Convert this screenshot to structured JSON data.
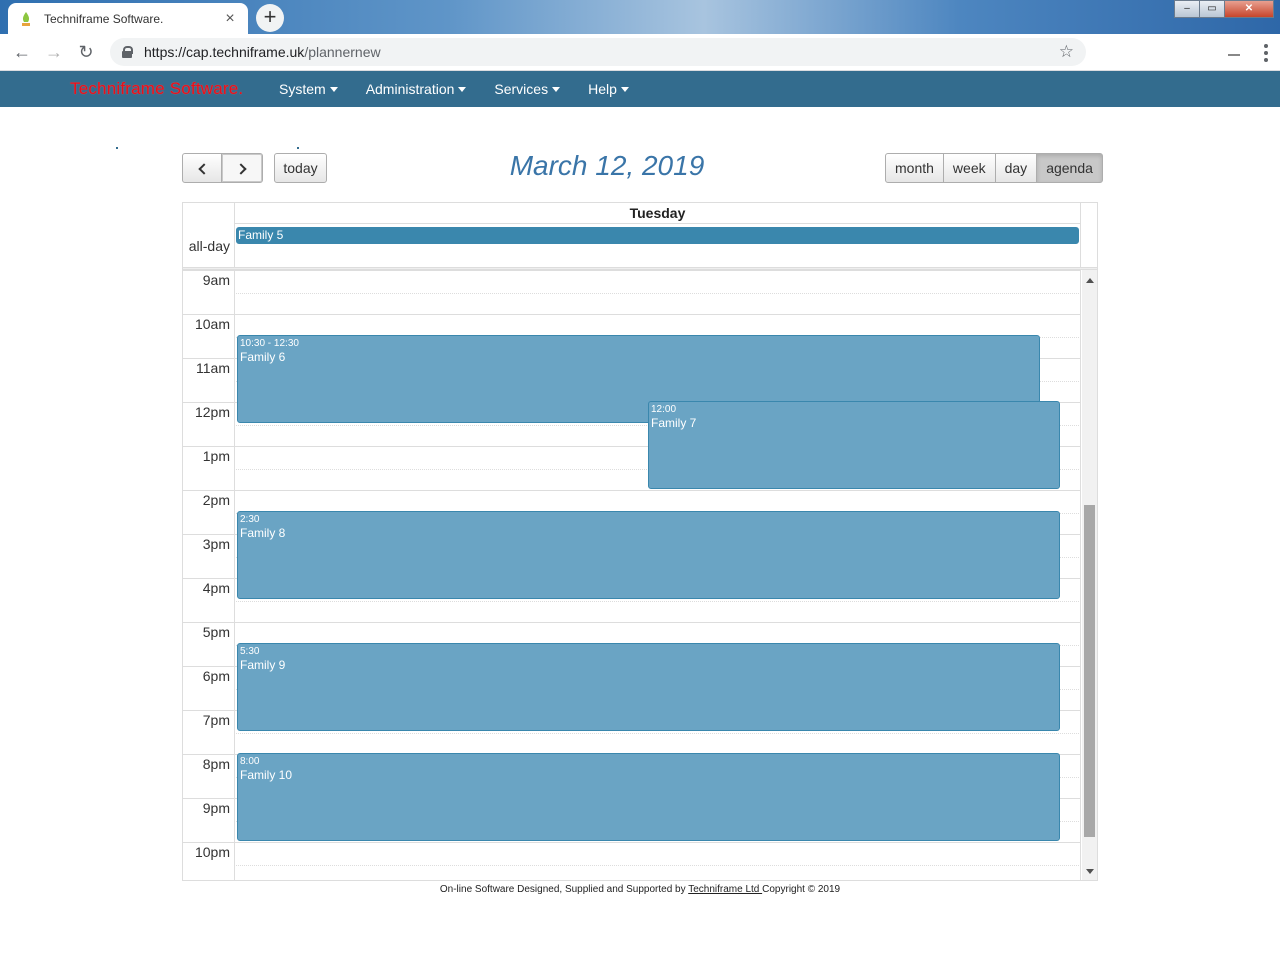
{
  "browser": {
    "tab_title": "Techniframe Software.",
    "tab_close": "×",
    "new_tab": "+",
    "url_host": "https://cap.techniframe.uk",
    "url_path": "/plannernew",
    "back": "←",
    "forward": "→",
    "reload": "↻",
    "star": "☆",
    "win_min": "–",
    "win_max": "▭",
    "win_close": "✕"
  },
  "navbar": {
    "brand": "Techniframe Software.",
    "menu": [
      {
        "label": "System"
      },
      {
        "label": "Administration"
      },
      {
        "label": "Services"
      },
      {
        "label": "Help"
      }
    ],
    "color": "#336c8e",
    "brand_color": "#e8101a"
  },
  "calendar": {
    "title": "March 12, 2019",
    "today_label": "today",
    "views": [
      "month",
      "week",
      "day",
      "agenda"
    ],
    "active_view": "agenda",
    "day_header": "Tuesday",
    "allday_label": "all-day",
    "allday_event": "Family 5",
    "hours": [
      "9am",
      "10am",
      "11am",
      "12pm",
      "1pm",
      "2pm",
      "3pm",
      "4pm",
      "5pm",
      "6pm",
      "7pm",
      "8pm",
      "9pm",
      "10pm"
    ],
    "events": [
      {
        "time": "10:30 - 12:30",
        "title": "Family 6"
      },
      {
        "time": "12:00",
        "title": "Family 7"
      },
      {
        "time": "2:30",
        "title": "Family 8"
      },
      {
        "time": "5:30",
        "title": "Family 9"
      },
      {
        "time": "8:00",
        "title": "Family 10"
      }
    ],
    "event_color": "#6aa4c4",
    "allday_color": "#3a87ad"
  },
  "footer": {
    "prefix": "On-line Software Designed, Supplied and Supported by ",
    "link": "Techniframe Ltd ",
    "suffix": "Copyright © 2019"
  }
}
